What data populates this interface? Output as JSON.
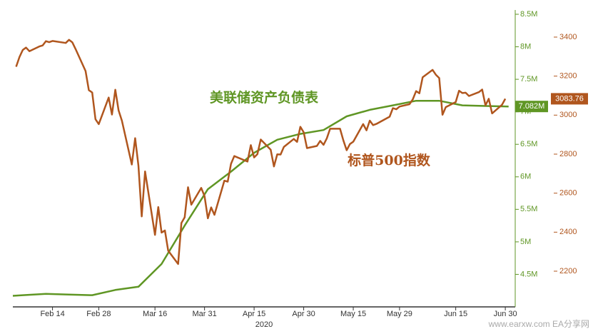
{
  "chart_data": {
    "type": "line",
    "xlim": [
      "2020-02-02",
      "2020-07-03"
    ],
    "xticks": [
      {
        "value": "2020-02-14",
        "label": "Feb 14"
      },
      {
        "value": "2020-02-28",
        "label": "Feb 28"
      },
      {
        "value": "2020-03-16",
        "label": "Mar 16"
      },
      {
        "value": "2020-03-31",
        "label": "Mar 31"
      },
      {
        "value": "2020-04-15",
        "label": "Apr 15"
      },
      {
        "value": "2020-04-30",
        "label": "Apr 30"
      },
      {
        "value": "2020-05-15",
        "label": "May 15"
      },
      {
        "value": "2020-05-29",
        "label": "May 29"
      },
      {
        "value": "2020-06-15",
        "label": "Jun 15"
      },
      {
        "value": "2020-06-30",
        "label": "Jun 30"
      }
    ],
    "xlabel": "2020",
    "ylim": [
      4,
      8.5
    ],
    "yticks": [
      {
        "value": 4.5,
        "label": "4.5M"
      },
      {
        "value": 5,
        "label": "5M"
      },
      {
        "value": 5.5,
        "label": "5.5M"
      },
      {
        "value": 6,
        "label": "6M"
      },
      {
        "value": 6.5,
        "label": "6.5M"
      },
      {
        "value": 7,
        "label": "7M"
      },
      {
        "value": 7.5,
        "label": "7.5M"
      },
      {
        "value": 8,
        "label": "8M"
      },
      {
        "value": 8.5,
        "label": "8.5M"
      }
    ],
    "y2lim": [
      2017,
      3517
    ],
    "y2ticks": [
      2200,
      2400,
      2600,
      2800,
      3000,
      3200,
      3400
    ],
    "series": [
      {
        "name": "美联储资产负债表",
        "color": "#5f9624",
        "axis": "y",
        "last_label": "7.082M",
        "x": [
          "2020-02-02",
          "2020-02-05",
          "2020-02-12",
          "2020-02-19",
          "2020-02-26",
          "2020-03-04",
          "2020-03-11",
          "2020-03-18",
          "2020-03-25",
          "2020-04-01",
          "2020-04-08",
          "2020-04-15",
          "2020-04-22",
          "2020-04-29",
          "2020-05-06",
          "2020-05-13",
          "2020-05-20",
          "2020-05-27",
          "2020-06-03",
          "2020-06-10",
          "2020-06-17",
          "2020-06-24",
          "2020-07-01"
        ],
        "values": [
          4.17,
          4.18,
          4.2,
          4.19,
          4.18,
          4.26,
          4.31,
          4.66,
          5.25,
          5.81,
          6.08,
          6.37,
          6.57,
          6.66,
          6.72,
          6.93,
          7.03,
          7.1,
          7.17,
          7.17,
          7.1,
          7.09,
          7.082
        ]
      },
      {
        "name": "标普500指数",
        "color": "#b0561e",
        "axis": "y2",
        "last_label": "3083.76",
        "x": [
          "2020-02-03",
          "2020-02-04",
          "2020-02-05",
          "2020-02-06",
          "2020-02-07",
          "2020-02-10",
          "2020-02-11",
          "2020-02-12",
          "2020-02-13",
          "2020-02-14",
          "2020-02-18",
          "2020-02-19",
          "2020-02-20",
          "2020-02-21",
          "2020-02-24",
          "2020-02-25",
          "2020-02-26",
          "2020-02-27",
          "2020-02-28",
          "2020-03-02",
          "2020-03-03",
          "2020-03-04",
          "2020-03-05",
          "2020-03-06",
          "2020-03-09",
          "2020-03-10",
          "2020-03-11",
          "2020-03-12",
          "2020-03-13",
          "2020-03-16",
          "2020-03-17",
          "2020-03-18",
          "2020-03-19",
          "2020-03-20",
          "2020-03-23",
          "2020-03-24",
          "2020-03-25",
          "2020-03-26",
          "2020-03-27",
          "2020-03-30",
          "2020-03-31",
          "2020-04-01",
          "2020-04-02",
          "2020-04-03",
          "2020-04-06",
          "2020-04-07",
          "2020-04-08",
          "2020-04-09",
          "2020-04-13",
          "2020-04-14",
          "2020-04-15",
          "2020-04-16",
          "2020-04-17",
          "2020-04-20",
          "2020-04-21",
          "2020-04-22",
          "2020-04-23",
          "2020-04-24",
          "2020-04-27",
          "2020-04-28",
          "2020-04-29",
          "2020-04-30",
          "2020-05-01",
          "2020-05-04",
          "2020-05-05",
          "2020-05-06",
          "2020-05-07",
          "2020-05-08",
          "2020-05-11",
          "2020-05-12",
          "2020-05-13",
          "2020-05-14",
          "2020-05-15",
          "2020-05-18",
          "2020-05-19",
          "2020-05-20",
          "2020-05-21",
          "2020-05-22",
          "2020-05-26",
          "2020-05-27",
          "2020-05-28",
          "2020-05-29",
          "2020-06-01",
          "2020-06-02",
          "2020-06-03",
          "2020-06-04",
          "2020-06-05",
          "2020-06-08",
          "2020-06-09",
          "2020-06-10",
          "2020-06-11",
          "2020-06-12",
          "2020-06-15",
          "2020-06-16",
          "2020-06-17",
          "2020-06-18",
          "2020-06-19",
          "2020-06-22",
          "2020-06-23",
          "2020-06-24",
          "2020-06-25",
          "2020-06-26",
          "2020-06-29",
          "2020-06-30"
        ],
        "values": [
          3248,
          3298,
          3334,
          3346,
          3328,
          3352,
          3357,
          3379,
          3374,
          3380,
          3370,
          3386,
          3373,
          3338,
          3226,
          3128,
          3116,
          2979,
          2954,
          3090,
          3003,
          3130,
          3024,
          2972,
          2747,
          2882,
          2741,
          2481,
          2711,
          2386,
          2529,
          2398,
          2409,
          2305,
          2237,
          2447,
          2476,
          2630,
          2541,
          2627,
          2585,
          2471,
          2527,
          2489,
          2664,
          2659,
          2750,
          2790,
          2762,
          2846,
          2783,
          2800,
          2875,
          2823,
          2737,
          2799,
          2798,
          2837,
          2878,
          2863,
          2940,
          2912,
          2831,
          2842,
          2868,
          2848,
          2881,
          2930,
          2930,
          2870,
          2820,
          2852,
          2864,
          2954,
          2922,
          2972,
          2949,
          2955,
          2992,
          3036,
          3030,
          3044,
          3056,
          3080,
          3123,
          3112,
          3194,
          3232,
          3207,
          3190,
          3002,
          3041,
          3067,
          3125,
          3113,
          3115,
          3098,
          3118,
          3131,
          3050,
          3084,
          3009,
          3053,
          3083.76
        ]
      }
    ],
    "watermark": "www.earxw.com  EA分享网"
  }
}
